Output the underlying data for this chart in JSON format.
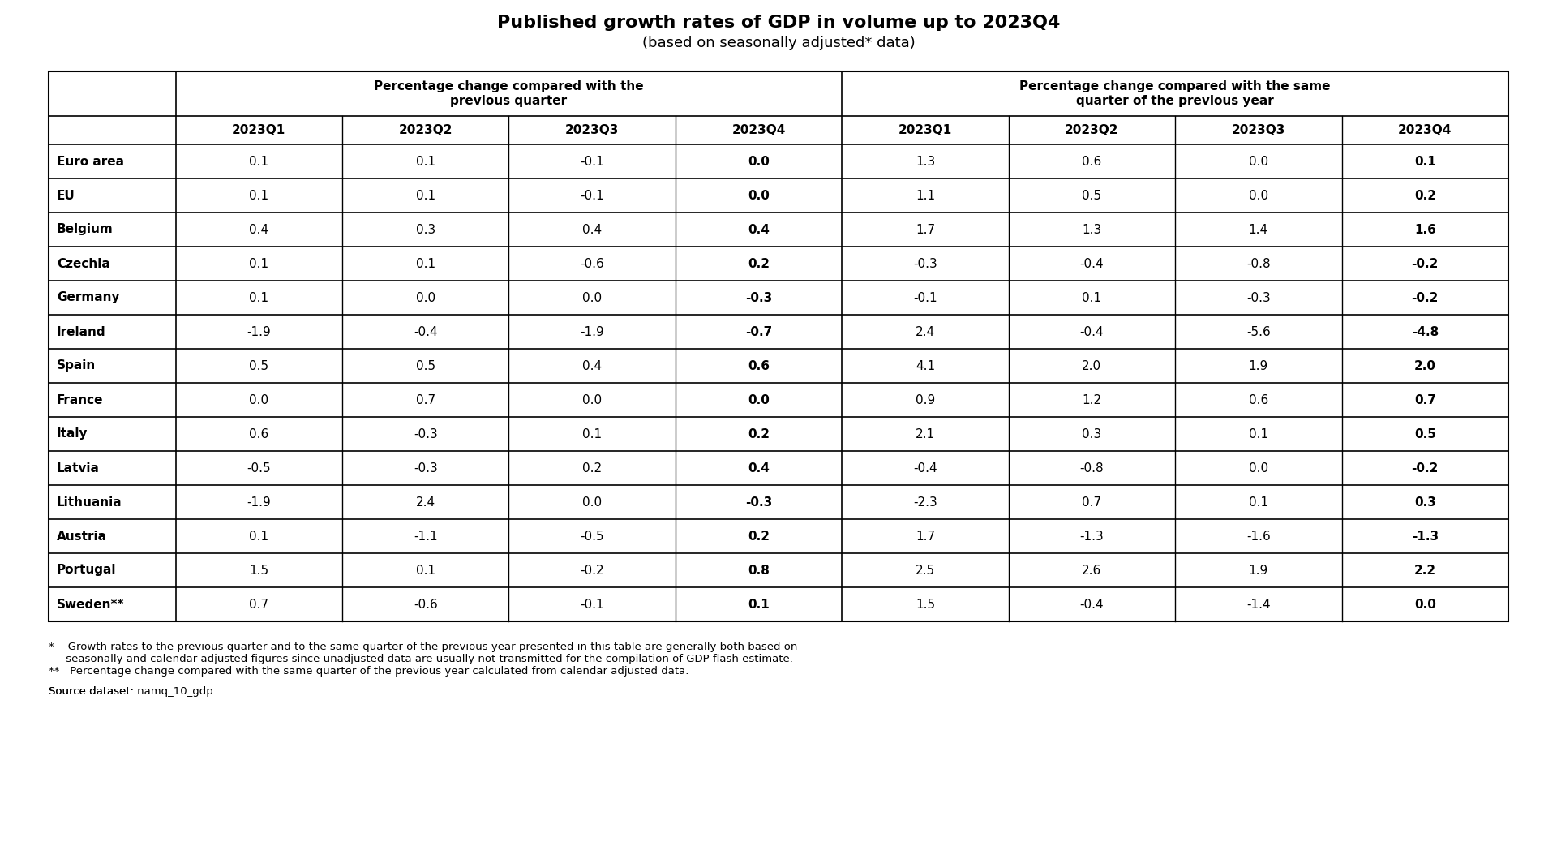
{
  "title": "Published growth rates of GDP in volume up to 2023Q4",
  "subtitle": "(based on seasonally adjusted* data)",
  "group_headers": [
    "Percentage change compared with the\nprevious quarter",
    "Percentage change compared with the same\nquarter of the previous year"
  ],
  "col_headers": [
    "2023Q1",
    "2023Q2",
    "2023Q3",
    "2023Q4",
    "2023Q1",
    "2023Q2",
    "2023Q3",
    "2023Q4"
  ],
  "row_labels": [
    "Euro area",
    "EU",
    "Belgium",
    "Czechia",
    "Germany",
    "Ireland",
    "Spain",
    "France",
    "Italy",
    "Latvia",
    "Lithuania",
    "Austria",
    "Portugal",
    "Sweden**"
  ],
  "data": [
    [
      "0.1",
      "0.1",
      "-0.1",
      "0.0",
      "1.3",
      "0.6",
      "0.0",
      "0.1"
    ],
    [
      "0.1",
      "0.1",
      "-0.1",
      "0.0",
      "1.1",
      "0.5",
      "0.0",
      "0.2"
    ],
    [
      "0.4",
      "0.3",
      "0.4",
      "0.4",
      "1.7",
      "1.3",
      "1.4",
      "1.6"
    ],
    [
      "0.1",
      "0.1",
      "-0.6",
      "0.2",
      "-0.3",
      "-0.4",
      "-0.8",
      "-0.2"
    ],
    [
      "0.1",
      "0.0",
      "0.0",
      "-0.3",
      "-0.1",
      "0.1",
      "-0.3",
      "-0.2"
    ],
    [
      "-1.9",
      "-0.4",
      "-1.9",
      "-0.7",
      "2.4",
      "-0.4",
      "-5.6",
      "-4.8"
    ],
    [
      "0.5",
      "0.5",
      "0.4",
      "0.6",
      "4.1",
      "2.0",
      "1.9",
      "2.0"
    ],
    [
      "0.0",
      "0.7",
      "0.0",
      "0.0",
      "0.9",
      "1.2",
      "0.6",
      "0.7"
    ],
    [
      "0.6",
      "-0.3",
      "0.1",
      "0.2",
      "2.1",
      "0.3",
      "0.1",
      "0.5"
    ],
    [
      "-0.5",
      "-0.3",
      "0.2",
      "0.4",
      "-0.4",
      "-0.8",
      "0.0",
      "-0.2"
    ],
    [
      "-1.9",
      "2.4",
      "0.0",
      "-0.3",
      "-2.3",
      "0.7",
      "0.1",
      "0.3"
    ],
    [
      "0.1",
      "-1.1",
      "-0.5",
      "0.2",
      "1.7",
      "-1.3",
      "-1.6",
      "-1.3"
    ],
    [
      "1.5",
      "0.1",
      "-0.2",
      "0.8",
      "2.5",
      "2.6",
      "1.9",
      "2.2"
    ],
    [
      "0.7",
      "-0.6",
      "-0.1",
      "0.1",
      "1.5",
      "-0.4",
      "-1.4",
      "0.0"
    ]
  ],
  "footnote1": "*    Growth rates to the previous quarter and to the same quarter of the previous year presented in this table are generally both based on\n     seasonally and calendar adjusted figures since unadjusted data are usually not transmitted for the compilation of GDP flash estimate.",
  "footnote2": "**   Percentage change compared with the same quarter of the previous year calculated from calendar adjusted data.",
  "source": "Source dataset: namq_10_gdp",
  "background_color": "#ffffff",
  "header_bg": "#ffffff",
  "border_color": "#000000",
  "title_fontsize": 16,
  "subtitle_fontsize": 13,
  "header_fontsize": 11,
  "cell_fontsize": 11,
  "row_label_fontsize": 11
}
